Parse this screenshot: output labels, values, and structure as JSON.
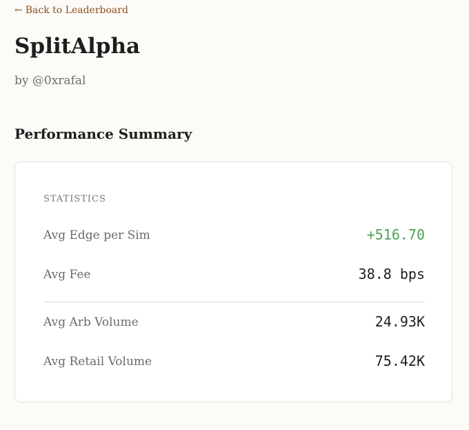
{
  "nav": {
    "back_arrow": "←",
    "back_label": "Back to Leaderboard"
  },
  "header": {
    "title": "SplitAlpha",
    "author": "by @0xrafal"
  },
  "section": {
    "heading": "Performance Summary"
  },
  "statistics": {
    "label": "STATISTICS",
    "rows": [
      {
        "label": "Avg Edge per Sim",
        "value": "+516.70",
        "status": "positive"
      },
      {
        "label": "Avg Fee",
        "value": "38.8 bps"
      },
      {
        "label": "Avg Arb Volume",
        "value": "24.93K"
      },
      {
        "label": "Avg Retail Volume",
        "value": "75.42K"
      }
    ]
  },
  "colors": {
    "background": "#fcfbf7",
    "link": "#8a4e1f",
    "positive": "#4ca154"
  }
}
